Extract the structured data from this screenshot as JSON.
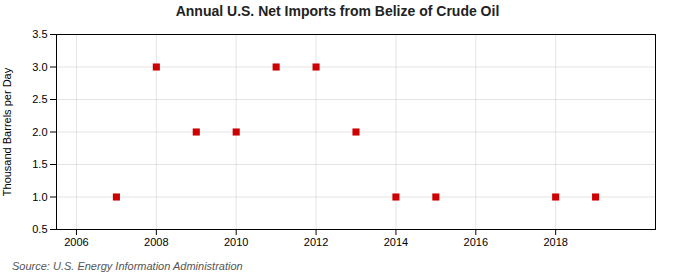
{
  "chart_data": {
    "type": "scatter",
    "title": "Annual U.S. Net Imports from Belize of Crude Oil",
    "ylabel": "Thousand Barrels per Day",
    "source": "Source: U.S. Energy Information Administration",
    "x": [
      2007,
      2008,
      2009,
      2010,
      2011,
      2012,
      2013,
      2014,
      2015,
      2018,
      2019
    ],
    "values": [
      1,
      3,
      2,
      2,
      3,
      3,
      2,
      1,
      1,
      1,
      1
    ],
    "color": "#cc0000",
    "marker": "square",
    "xlim": [
      2005.5,
      2020.5
    ],
    "xticks": [
      2006,
      2008,
      2010,
      2012,
      2014,
      2016,
      2018
    ],
    "ylim": [
      0.5,
      3.5
    ],
    "yticks": [
      0.5,
      {
        "value": 1.0,
        "label": "1.0"
      },
      1.5,
      {
        "value": 2.0,
        "label": "2.0"
      },
      2.5,
      {
        "value": 3.0,
        "label": "3.0"
      },
      3.5
    ],
    "grid": true
  }
}
